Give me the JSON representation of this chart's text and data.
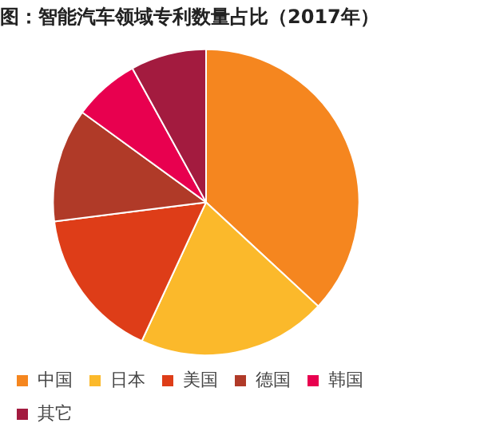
{
  "chart_data": {
    "type": "pie",
    "title": "图：智能汽车领域专利数量占比（2017年）",
    "categories": [
      "中国",
      "日本",
      "美国",
      "德国",
      "韩国",
      "其它"
    ],
    "values": [
      36.9,
      20,
      16.1,
      12,
      7,
      8
    ],
    "colors": [
      "#f5861f",
      "#fbb92b",
      "#de3d18",
      "#b03a28",
      "#e8004f",
      "#a31b3f"
    ],
    "legend": "bottom left"
  }
}
